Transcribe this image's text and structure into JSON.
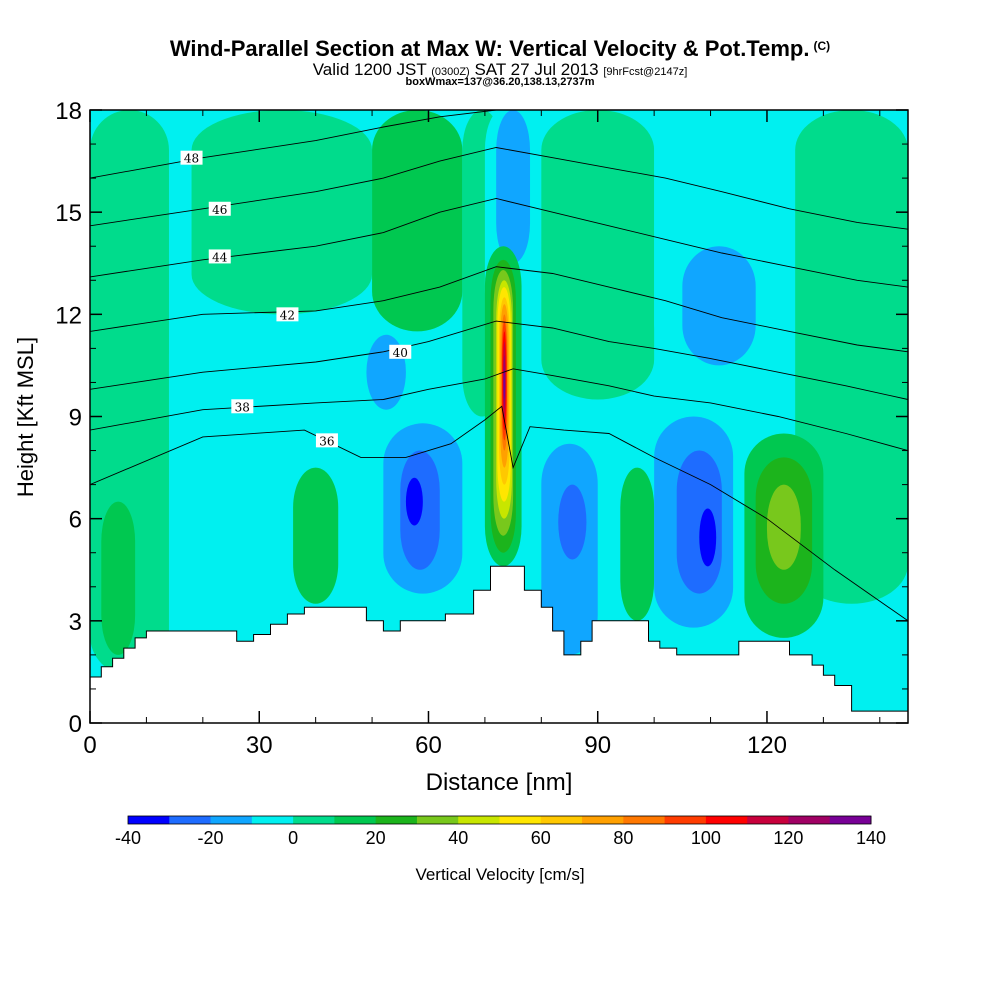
{
  "header": {
    "title": "Wind-Parallel Section at Max W: Vertical Velocity & Pot.Temp.",
    "title_mark": "(C)",
    "valid_prefix": "Valid 1200 JST",
    "valid_utc": "(0300Z)",
    "valid_date": "SAT 27 Jul 2013",
    "forecast": "[9hrFcst@2147z]",
    "box_info": "boxWmax=137@36.20,138.13,2737m"
  },
  "chart_data": {
    "type": "heatmap",
    "xlabel": "Distance [nm]",
    "ylabel": "Height [Kft MSL]",
    "xlim": [
      0,
      145
    ],
    "ylim": [
      0,
      18
    ],
    "x_ticks": [
      0,
      30,
      60,
      90,
      120
    ],
    "y_ticks": [
      0,
      3,
      6,
      9,
      12,
      15,
      18
    ],
    "colorbar": {
      "label": "Vertical Velocity [cm/s]",
      "ticks": [
        -40,
        -20,
        0,
        20,
        40,
        60,
        80,
        100,
        120,
        140
      ],
      "levels": [
        -40,
        -30,
        -20,
        -10,
        0,
        10,
        20,
        30,
        40,
        50,
        60,
        70,
        80,
        90,
        100,
        110,
        120,
        130,
        140
      ],
      "colors": [
        "#0000ff",
        "#1e6cff",
        "#10a6ff",
        "#00f0f0",
        "#00dc8c",
        "#00c850",
        "#1cb41c",
        "#78c81c",
        "#c8e600",
        "#ffe600",
        "#ffc800",
        "#ffa000",
        "#ff7800",
        "#ff3c00",
        "#ff0000",
        "#c8003c",
        "#a00064",
        "#780096"
      ]
    },
    "vertical_velocity_cells": [
      {
        "x": [
          0,
          14
        ],
        "z": [
          1.4,
          18
        ],
        "w": 5
      },
      {
        "x": [
          14,
          66
        ],
        "z": [
          1.4,
          8.0
        ],
        "w": -5
      },
      {
        "x": [
          14,
          58
        ],
        "z": [
          8.0,
          12.0
        ],
        "w": -5
      },
      {
        "x": [
          18,
          50
        ],
        "z": [
          12.0,
          18
        ],
        "w": 5
      },
      {
        "x": [
          50,
          66
        ],
        "z": [
          11.5,
          18
        ],
        "w": 15
      },
      {
        "x": [
          66,
          73
        ],
        "z": [
          9.0,
          18
        ],
        "w": 5
      },
      {
        "x": [
          80,
          100
        ],
        "z": [
          9.5,
          18
        ],
        "w": 5
      },
      {
        "x": [
          100,
          125
        ],
        "z": [
          10.5,
          18
        ],
        "w": -5
      },
      {
        "x": [
          125,
          145
        ],
        "z": [
          3.5,
          18
        ],
        "w": 5
      },
      {
        "x": [
          2,
          8
        ],
        "z": [
          2.0,
          6.5
        ],
        "w": 15
      },
      {
        "x": [
          36,
          44
        ],
        "z": [
          3.5,
          7.5
        ],
        "w": 15
      },
      {
        "x": [
          52,
          66
        ],
        "z": [
          3.8,
          8.8
        ],
        "w": -15
      },
      {
        "x": [
          55,
          62
        ],
        "z": [
          4.5,
          8.0
        ],
        "w": -25
      },
      {
        "x": [
          56,
          59
        ],
        "z": [
          5.8,
          7.2
        ],
        "w": -35
      },
      {
        "x": [
          49,
          56
        ],
        "z": [
          9.2,
          11.4
        ],
        "w": -15
      },
      {
        "x": [
          80,
          90
        ],
        "z": [
          2.0,
          8.2
        ],
        "w": -15
      },
      {
        "x": [
          83,
          88
        ],
        "z": [
          4.8,
          7.0
        ],
        "w": -25
      },
      {
        "x": [
          94,
          100
        ],
        "z": [
          3.0,
          7.5
        ],
        "w": 15
      },
      {
        "x": [
          100,
          114
        ],
        "z": [
          2.8,
          9.0
        ],
        "w": -15
      },
      {
        "x": [
          104,
          112
        ],
        "z": [
          3.8,
          8.0
        ],
        "w": -25
      },
      {
        "x": [
          108,
          111
        ],
        "z": [
          4.6,
          6.3
        ],
        "w": -35
      },
      {
        "x": [
          105,
          118
        ],
        "z": [
          10.5,
          14.0
        ],
        "w": -15
      },
      {
        "x": [
          116,
          130
        ],
        "z": [
          2.5,
          8.5
        ],
        "w": 15
      },
      {
        "x": [
          118,
          128
        ],
        "z": [
          3.5,
          7.8
        ],
        "w": 25
      },
      {
        "x": [
          120,
          126
        ],
        "z": [
          4.5,
          7.0
        ],
        "w": 35
      },
      {
        "x": [
          70,
          76
        ],
        "z": [
          11.5,
          18
        ],
        "w": -5
      },
      {
        "x": [
          72,
          78
        ],
        "z": [
          13.5,
          18
        ],
        "w": -15
      },
      {
        "x": [
          70,
          76.5
        ],
        "z": [
          4.6,
          14.0
        ],
        "w": 15
      },
      {
        "x": [
          71,
          75.5
        ],
        "z": [
          5.0,
          13.6
        ],
        "w": 25
      },
      {
        "x": [
          71.5,
          75
        ],
        "z": [
          5.5,
          13.3
        ],
        "w": 35
      },
      {
        "x": [
          72,
          74.8
        ],
        "z": [
          6.0,
          13.0
        ],
        "w": 45
      },
      {
        "x": [
          72.2,
          74.6
        ],
        "z": [
          6.5,
          12.8
        ],
        "w": 55
      },
      {
        "x": [
          72.5,
          74.4
        ],
        "z": [
          7.0,
          12.5
        ],
        "w": 65
      },
      {
        "x": [
          72.7,
          74.2
        ],
        "z": [
          7.5,
          12.3
        ],
        "w": 75
      },
      {
        "x": [
          72.9,
          74.0
        ],
        "z": [
          8.0,
          12.0
        ],
        "w": 85
      },
      {
        "x": [
          73.0,
          73.9
        ],
        "z": [
          8.3,
          11.8
        ],
        "w": 95
      },
      {
        "x": [
          73.1,
          73.8
        ],
        "z": [
          8.6,
          11.5
        ],
        "w": 105
      },
      {
        "x": [
          73.2,
          73.7
        ],
        "z": [
          8.9,
          11.2
        ],
        "w": 115
      },
      {
        "x": [
          73.25,
          73.65
        ],
        "z": [
          9.2,
          10.8
        ],
        "w": 125
      },
      {
        "x": [
          73.3,
          73.6
        ],
        "z": [
          9.5,
          10.4
        ],
        "w": 135
      }
    ],
    "theta_contours": [
      {
        "label": "36",
        "points": [
          [
            0,
            7.0
          ],
          [
            20,
            8.4
          ],
          [
            38,
            8.6
          ],
          [
            48,
            7.8
          ],
          [
            56,
            7.8
          ],
          [
            64,
            8.2
          ],
          [
            70,
            8.9
          ],
          [
            73,
            9.3
          ],
          [
            75,
            7.5
          ],
          [
            78,
            8.7
          ],
          [
            84,
            8.6
          ],
          [
            92,
            8.5
          ],
          [
            100,
            7.8
          ],
          [
            110,
            7.0
          ],
          [
            120,
            6.0
          ],
          [
            132,
            4.5
          ],
          [
            145,
            3.0
          ]
        ],
        "label_at": [
          42,
          8.3
        ]
      },
      {
        "label": "38",
        "points": [
          [
            0,
            8.6
          ],
          [
            20,
            9.2
          ],
          [
            40,
            9.4
          ],
          [
            52,
            9.5
          ],
          [
            60,
            9.8
          ],
          [
            70,
            10.1
          ],
          [
            75,
            10.4
          ],
          [
            82,
            10.2
          ],
          [
            92,
            9.9
          ],
          [
            100,
            9.6
          ],
          [
            110,
            9.4
          ],
          [
            122,
            9.0
          ],
          [
            134,
            8.5
          ],
          [
            145,
            8.0
          ]
        ],
        "label_at": [
          27,
          9.3
        ]
      },
      {
        "label": "40",
        "points": [
          [
            0,
            9.8
          ],
          [
            20,
            10.3
          ],
          [
            40,
            10.6
          ],
          [
            52,
            10.9
          ],
          [
            60,
            11.2
          ],
          [
            72,
            11.8
          ],
          [
            82,
            11.6
          ],
          [
            92,
            11.2
          ],
          [
            100,
            11.0
          ],
          [
            110,
            10.7
          ],
          [
            122,
            10.3
          ],
          [
            134,
            9.9
          ],
          [
            145,
            9.5
          ]
        ],
        "label_at": [
          55,
          10.9
        ]
      },
      {
        "label": "42",
        "points": [
          [
            0,
            11.5
          ],
          [
            20,
            12.0
          ],
          [
            40,
            12.1
          ],
          [
            52,
            12.4
          ],
          [
            62,
            12.8
          ],
          [
            72,
            13.4
          ],
          [
            82,
            13.2
          ],
          [
            92,
            12.8
          ],
          [
            102,
            12.4
          ],
          [
            112,
            11.9
          ],
          [
            124,
            11.5
          ],
          [
            136,
            11.1
          ],
          [
            145,
            10.9
          ]
        ],
        "label_at": [
          35,
          12.0
        ]
      },
      {
        "label": "44",
        "points": [
          [
            0,
            13.1
          ],
          [
            20,
            13.6
          ],
          [
            40,
            14.0
          ],
          [
            52,
            14.4
          ],
          [
            62,
            15.0
          ],
          [
            72,
            15.4
          ],
          [
            82,
            15.0
          ],
          [
            92,
            14.6
          ],
          [
            102,
            14.2
          ],
          [
            112,
            13.8
          ],
          [
            124,
            13.4
          ],
          [
            136,
            13.0
          ],
          [
            145,
            12.8
          ]
        ],
        "label_at": [
          23,
          13.7
        ]
      },
      {
        "label": "46",
        "points": [
          [
            0,
            14.6
          ],
          [
            20,
            15.1
          ],
          [
            40,
            15.6
          ],
          [
            52,
            16.0
          ],
          [
            62,
            16.5
          ],
          [
            72,
            16.9
          ],
          [
            82,
            16.6
          ],
          [
            92,
            16.3
          ],
          [
            102,
            16.0
          ],
          [
            112,
            15.6
          ],
          [
            124,
            15.1
          ],
          [
            136,
            14.7
          ],
          [
            145,
            14.5
          ]
        ],
        "label_at": [
          23,
          15.1
        ]
      },
      {
        "label": "48",
        "points": [
          [
            0,
            16.0
          ],
          [
            20,
            16.6
          ],
          [
            40,
            17.1
          ],
          [
            52,
            17.5
          ],
          [
            62,
            17.8
          ],
          [
            72,
            18.0
          ]
        ],
        "label_at": [
          18,
          16.6
        ]
      }
    ],
    "terrain": [
      [
        0,
        1.35
      ],
      [
        2,
        1.35
      ],
      [
        2,
        1.65
      ],
      [
        4,
        1.65
      ],
      [
        4,
        1.9
      ],
      [
        6,
        1.9
      ],
      [
        6,
        2.2
      ],
      [
        8,
        2.2
      ],
      [
        8,
        2.5
      ],
      [
        10,
        2.5
      ],
      [
        10,
        2.7
      ],
      [
        26,
        2.7
      ],
      [
        26,
        2.4
      ],
      [
        29,
        2.4
      ],
      [
        29,
        2.6
      ],
      [
        32,
        2.6
      ],
      [
        32,
        2.9
      ],
      [
        35,
        2.9
      ],
      [
        35,
        3.2
      ],
      [
        38,
        3.2
      ],
      [
        38,
        3.4
      ],
      [
        49,
        3.4
      ],
      [
        49,
        3.0
      ],
      [
        52,
        3.0
      ],
      [
        52,
        2.7
      ],
      [
        55,
        2.7
      ],
      [
        55,
        3.0
      ],
      [
        63,
        3.0
      ],
      [
        63,
        3.2
      ],
      [
        68,
        3.2
      ],
      [
        68,
        3.9
      ],
      [
        71,
        3.9
      ],
      [
        71,
        4.6
      ],
      [
        77,
        4.6
      ],
      [
        77,
        3.9
      ],
      [
        80,
        3.9
      ],
      [
        80,
        3.4
      ],
      [
        82,
        3.4
      ],
      [
        82,
        2.7
      ],
      [
        84,
        2.7
      ],
      [
        84,
        2.0
      ],
      [
        87,
        2.0
      ],
      [
        87,
        2.4
      ],
      [
        89,
        2.4
      ],
      [
        89,
        3.0
      ],
      [
        99,
        3.0
      ],
      [
        99,
        2.4
      ],
      [
        101,
        2.4
      ],
      [
        101,
        2.2
      ],
      [
        104,
        2.2
      ],
      [
        104,
        2.0
      ],
      [
        115,
        2.0
      ],
      [
        115,
        2.4
      ],
      [
        124,
        2.4
      ],
      [
        124,
        2.0
      ],
      [
        128,
        2.0
      ],
      [
        128,
        1.7
      ],
      [
        130,
        1.7
      ],
      [
        130,
        1.4
      ],
      [
        132,
        1.4
      ],
      [
        132,
        1.1
      ],
      [
        135,
        1.1
      ],
      [
        135,
        0.35
      ],
      [
        145,
        0.35
      ]
    ]
  }
}
